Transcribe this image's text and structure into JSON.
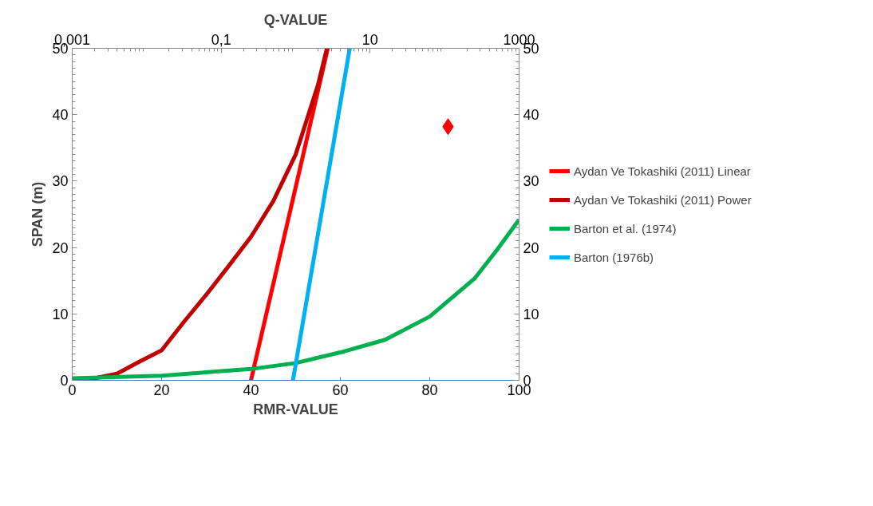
{
  "chart_data": {
    "type": "line",
    "xlabel": "RMR-VALUE",
    "ylabel": "SPAN (m)",
    "x2label": "Q-VALUE",
    "xlim": [
      0,
      100
    ],
    "xticks": [
      0,
      20,
      40,
      60,
      80,
      100
    ],
    "x2lim": [
      0.001,
      1000
    ],
    "x2ticks": [
      {
        "value": 0.001,
        "label": "0,001"
      },
      {
        "value": 0.1,
        "label": "0,1"
      },
      10,
      1000
    ],
    "log": "x2",
    "ylim": [
      0,
      50
    ],
    "yticks": [
      0,
      10,
      20,
      30,
      40,
      50
    ],
    "y2lim": [
      0,
      50
    ],
    "y2ticks": [
      0,
      10,
      20,
      30,
      40,
      50
    ],
    "grid": false,
    "legend": "right",
    "line_style": "solid",
    "marker": "none",
    "series": [
      {
        "name": "Aydan Ve Tokashiki (2011) Linear",
        "color": "#ff0000",
        "x": [
          40,
          57.2
        ],
        "values": [
          0,
          50
        ]
      },
      {
        "name": "Aydan Ve Tokashiki (2011) Power",
        "color": "#c00000",
        "x": [
          0,
          5,
          10,
          15,
          20,
          25,
          30,
          35,
          40,
          45,
          50,
          55,
          57
        ],
        "values": [
          0,
          0.3,
          1,
          2.8,
          4.5,
          8.8,
          12.9,
          17.2,
          21.6,
          27,
          34,
          44.5,
          50
        ]
      },
      {
        "name": "Barton et al. (1974)",
        "color": "#00b050",
        "x": [
          0,
          20,
          40,
          50,
          60,
          70,
          80,
          90,
          95,
          100
        ],
        "values": [
          0.3,
          0.7,
          1.7,
          2.6,
          4.2,
          6.1,
          9.6,
          15.3,
          19.6,
          24.2
        ]
      },
      {
        "name": "Barton (1976b)",
        "color": "#00b0f0",
        "x": [
          49.4,
          62.1
        ],
        "values": [
          0,
          50
        ]
      },
      {
        "type": "scatter",
        "marker": "diamond",
        "color": "#ff0000",
        "x": [
          84.1
        ],
        "values": [
          38.2
        ]
      }
    ]
  }
}
